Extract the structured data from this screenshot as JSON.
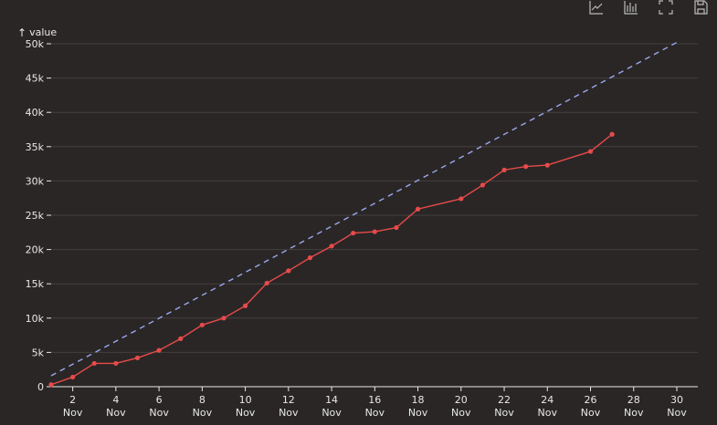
{
  "toolbar": {
    "icons": [
      "line-chart-icon",
      "bar-chart-icon",
      "fullscreen-icon",
      "save-icon"
    ]
  },
  "chart_data": {
    "type": "line",
    "title": "",
    "xlabel": "",
    "ylabel": "value",
    "x_ticks": [
      "2 Nov",
      "4 Nov",
      "6 Nov",
      "8 Nov",
      "10 Nov",
      "12 Nov",
      "14 Nov",
      "16 Nov",
      "18 Nov",
      "20 Nov",
      "22 Nov",
      "24 Nov",
      "26 Nov",
      "28 Nov",
      "30 Nov"
    ],
    "y_ticks": [
      "0",
      "5k",
      "10k",
      "15k",
      "20k",
      "25k",
      "30k",
      "35k",
      "40k",
      "45k",
      "50k"
    ],
    "xlim": [
      "2023-11-01",
      "2023-11-30"
    ],
    "ylim": [
      0,
      50000
    ],
    "grid": true,
    "colors": {
      "actual": "#e84a4a",
      "target": "#9aa8ee",
      "grid": "#444040",
      "text": "#e8e8e8"
    },
    "series": [
      {
        "style": "solid-markers",
        "x": [
          "2023-11-01",
          "2023-11-02",
          "2023-11-03",
          "2023-11-04",
          "2023-11-05",
          "2023-11-06",
          "2023-11-07",
          "2023-11-08",
          "2023-11-09",
          "2023-11-10",
          "2023-11-11",
          "2023-11-12",
          "2023-11-13",
          "2023-11-14",
          "2023-11-15",
          "2023-11-16",
          "2023-11-17",
          "2023-11-18",
          "2023-11-20",
          "2023-11-21",
          "2023-11-22",
          "2023-11-23",
          "2023-11-24",
          "2023-11-26",
          "2023-11-27"
        ],
        "values": [
          300,
          1400,
          3400,
          3400,
          4200,
          5300,
          7000,
          9000,
          10000,
          11800,
          15100,
          16900,
          18800,
          20500,
          22400,
          22600,
          23200,
          25900,
          27400,
          29400,
          31600,
          32100,
          32300,
          34300,
          36800
        ]
      },
      {
        "style": "dashed",
        "x": [
          "2023-11-01",
          "2023-11-30"
        ],
        "values": [
          1600,
          50200
        ]
      }
    ]
  }
}
